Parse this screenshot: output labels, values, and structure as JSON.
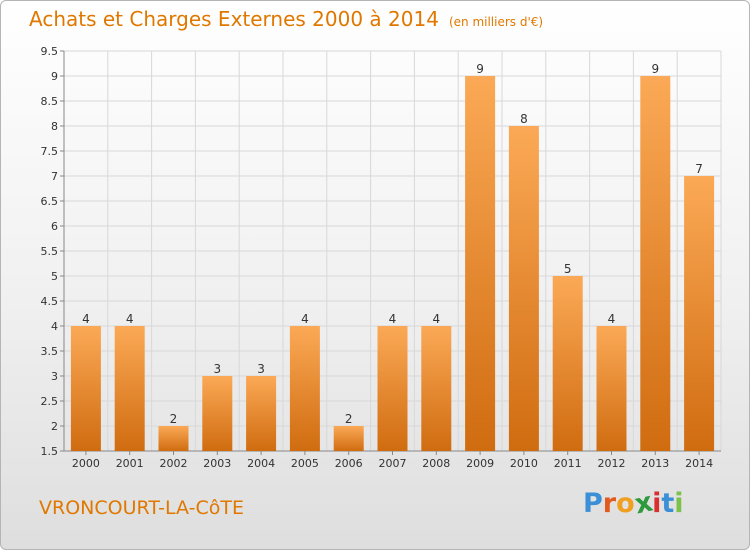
{
  "header": {
    "title": "Achats et Charges Externes 2000 à 2014",
    "unit": "(en milliers d'€)"
  },
  "footer": {
    "commune": "VRONCOURT-LA-CôTE",
    "logo": {
      "letters": [
        "P",
        "r",
        "o",
        "x",
        "i",
        "t",
        "i"
      ],
      "colors": [
        "#3a8fd6",
        "#e35a1f",
        "#f0a020",
        "#2e9a3c",
        "#d8302f",
        "#3a8fd6",
        "#7cc24a"
      ]
    }
  },
  "colors": {
    "bar_light": "#fba956",
    "bar_dark": "#d06c10",
    "title": "#e07800",
    "grid": "#d8d8d8",
    "axis_text": "#333333"
  },
  "chart_data": {
    "type": "bar",
    "categories": [
      "2000",
      "2001",
      "2002",
      "2003",
      "2004",
      "2005",
      "2006",
      "2007",
      "2008",
      "2009",
      "2010",
      "2011",
      "2012",
      "2013",
      "2014"
    ],
    "values": [
      4,
      4,
      2,
      3,
      3,
      4,
      2,
      4,
      4,
      9,
      8,
      5,
      4,
      9,
      7
    ],
    "value_labels": [
      "4",
      "4",
      "2",
      "3",
      "3",
      "4",
      "2",
      "4",
      "4",
      "9",
      "8",
      "5",
      "4",
      "9",
      "7"
    ],
    "y_ticks": [
      "1.5",
      "2",
      "2.5",
      "3",
      "3.5",
      "4",
      "4.5",
      "5",
      "5.5",
      "6",
      "6.5",
      "7",
      "7.5",
      "8",
      "8.5",
      "9",
      "9.5"
    ],
    "ylim": [
      1.5,
      9.5
    ],
    "grid": true,
    "title": "Achats et Charges Externes 2000 à 2014",
    "xlabel": "",
    "ylabel": ""
  }
}
